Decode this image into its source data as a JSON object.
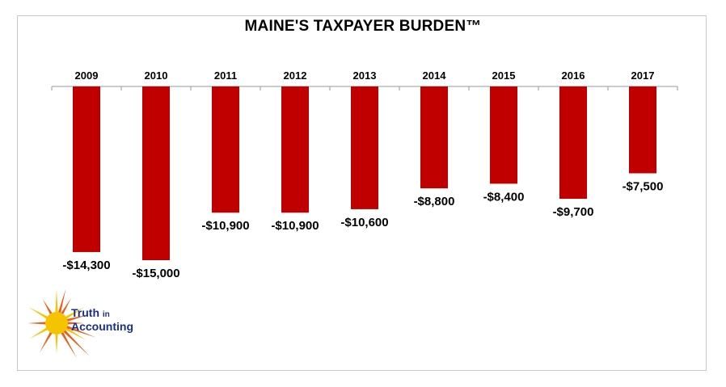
{
  "chart_data": {
    "type": "bar",
    "title": "MAINE'S TAXPAYER BURDEN™",
    "categories": [
      "2009",
      "2010",
      "2011",
      "2012",
      "2013",
      "2014",
      "2015",
      "2016",
      "2017"
    ],
    "values": [
      -14300,
      -15000,
      -10900,
      -10900,
      -10600,
      -8800,
      -8400,
      -9700,
      -7500
    ],
    "value_labels": [
      "-$14,300",
      "-$15,000",
      "-$10,900",
      "-$10,900",
      "-$10,600",
      "-$8,800",
      "-$8,400",
      "-$9,700",
      "-$7,500"
    ],
    "xlabel": "",
    "ylabel": "",
    "ylim": [
      -15000,
      0
    ],
    "grid": false,
    "legend": "none",
    "bar_color": "#c00000",
    "category_axis_position": "top"
  },
  "logo": {
    "line1": "Truth",
    "line1_small": "in",
    "line2": "Accounting",
    "text_color": "#1a2f8a",
    "sun_color": "#f5c400",
    "ray_color": "#e8601c"
  }
}
